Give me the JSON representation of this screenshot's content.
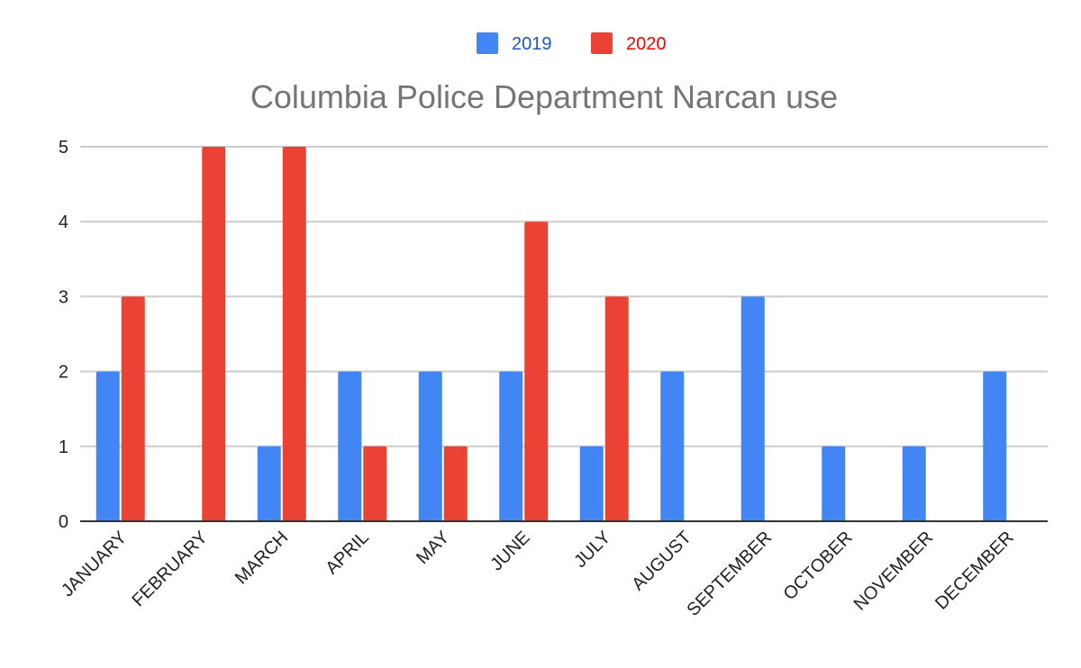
{
  "chart_data": {
    "type": "bar",
    "title": "Columbia Police Department Narcan use",
    "xlabel": "",
    "ylabel": "",
    "categories": [
      "JANUARY",
      "FEBRUARY",
      "MARCH",
      "APRIL",
      "MAY",
      "JUNE",
      "JULY",
      "AUGUST",
      "SEPTEMBER",
      "OCTOBER",
      "NOVEMBER",
      "DECEMBER"
    ],
    "series": [
      {
        "name": "2019",
        "color": "#4285f4",
        "label_color": "#1a56c4",
        "values": [
          2,
          0,
          1,
          2,
          2,
          2,
          1,
          2,
          3,
          1,
          1,
          2
        ]
      },
      {
        "name": "2020",
        "color": "#ea4335",
        "label_color": "#ff0000",
        "values": [
          3,
          5,
          5,
          1,
          1,
          4,
          3,
          0,
          0,
          0,
          0,
          0
        ]
      }
    ],
    "ylim": [
      0,
      5
    ],
    "yticks": [
      0,
      1,
      2,
      3,
      4,
      5
    ],
    "grid": true,
    "legend_position": "top-center"
  }
}
